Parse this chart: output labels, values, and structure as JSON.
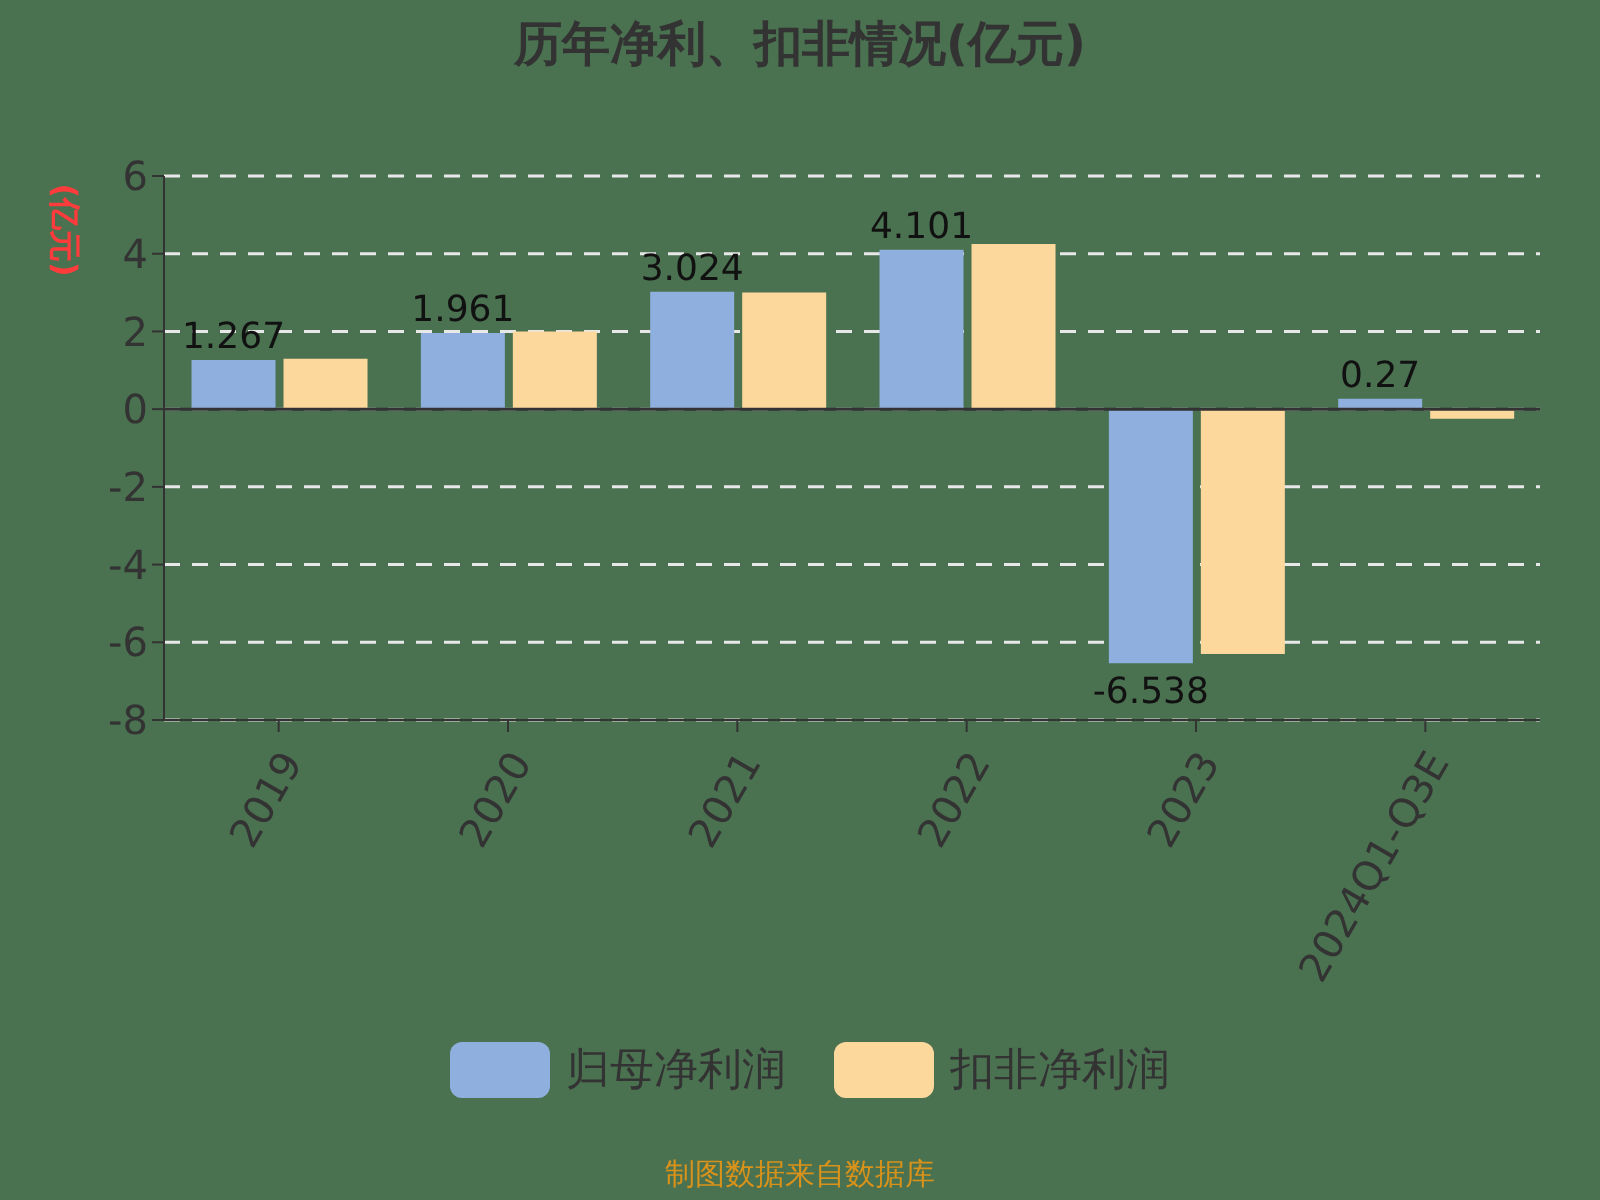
{
  "chart_data": {
    "type": "bar",
    "title": "历年净利、扣非情况(亿元)",
    "ylabel": "(亿元)",
    "categories": [
      "2019",
      "2020",
      "2021",
      "2022",
      "2023",
      "2024Q1-Q3E"
    ],
    "series": [
      {
        "name": "归母净利润",
        "color": "#8fb0de",
        "values": [
          1.267,
          1.961,
          3.024,
          4.101,
          -6.538,
          0.27
        ],
        "data_labels": true
      },
      {
        "name": "扣非净利润",
        "color": "#fdd89c",
        "values": [
          1.3,
          2.0,
          3.0,
          4.25,
          -6.3,
          -0.25
        ]
      }
    ],
    "ylim": [
      -8,
      6
    ],
    "yticks": [
      -8,
      -6,
      -4,
      -2,
      0,
      2,
      4,
      6
    ],
    "grid": "y",
    "legend": "bottom",
    "annotations": [
      "制图数据来自数据库"
    ]
  }
}
